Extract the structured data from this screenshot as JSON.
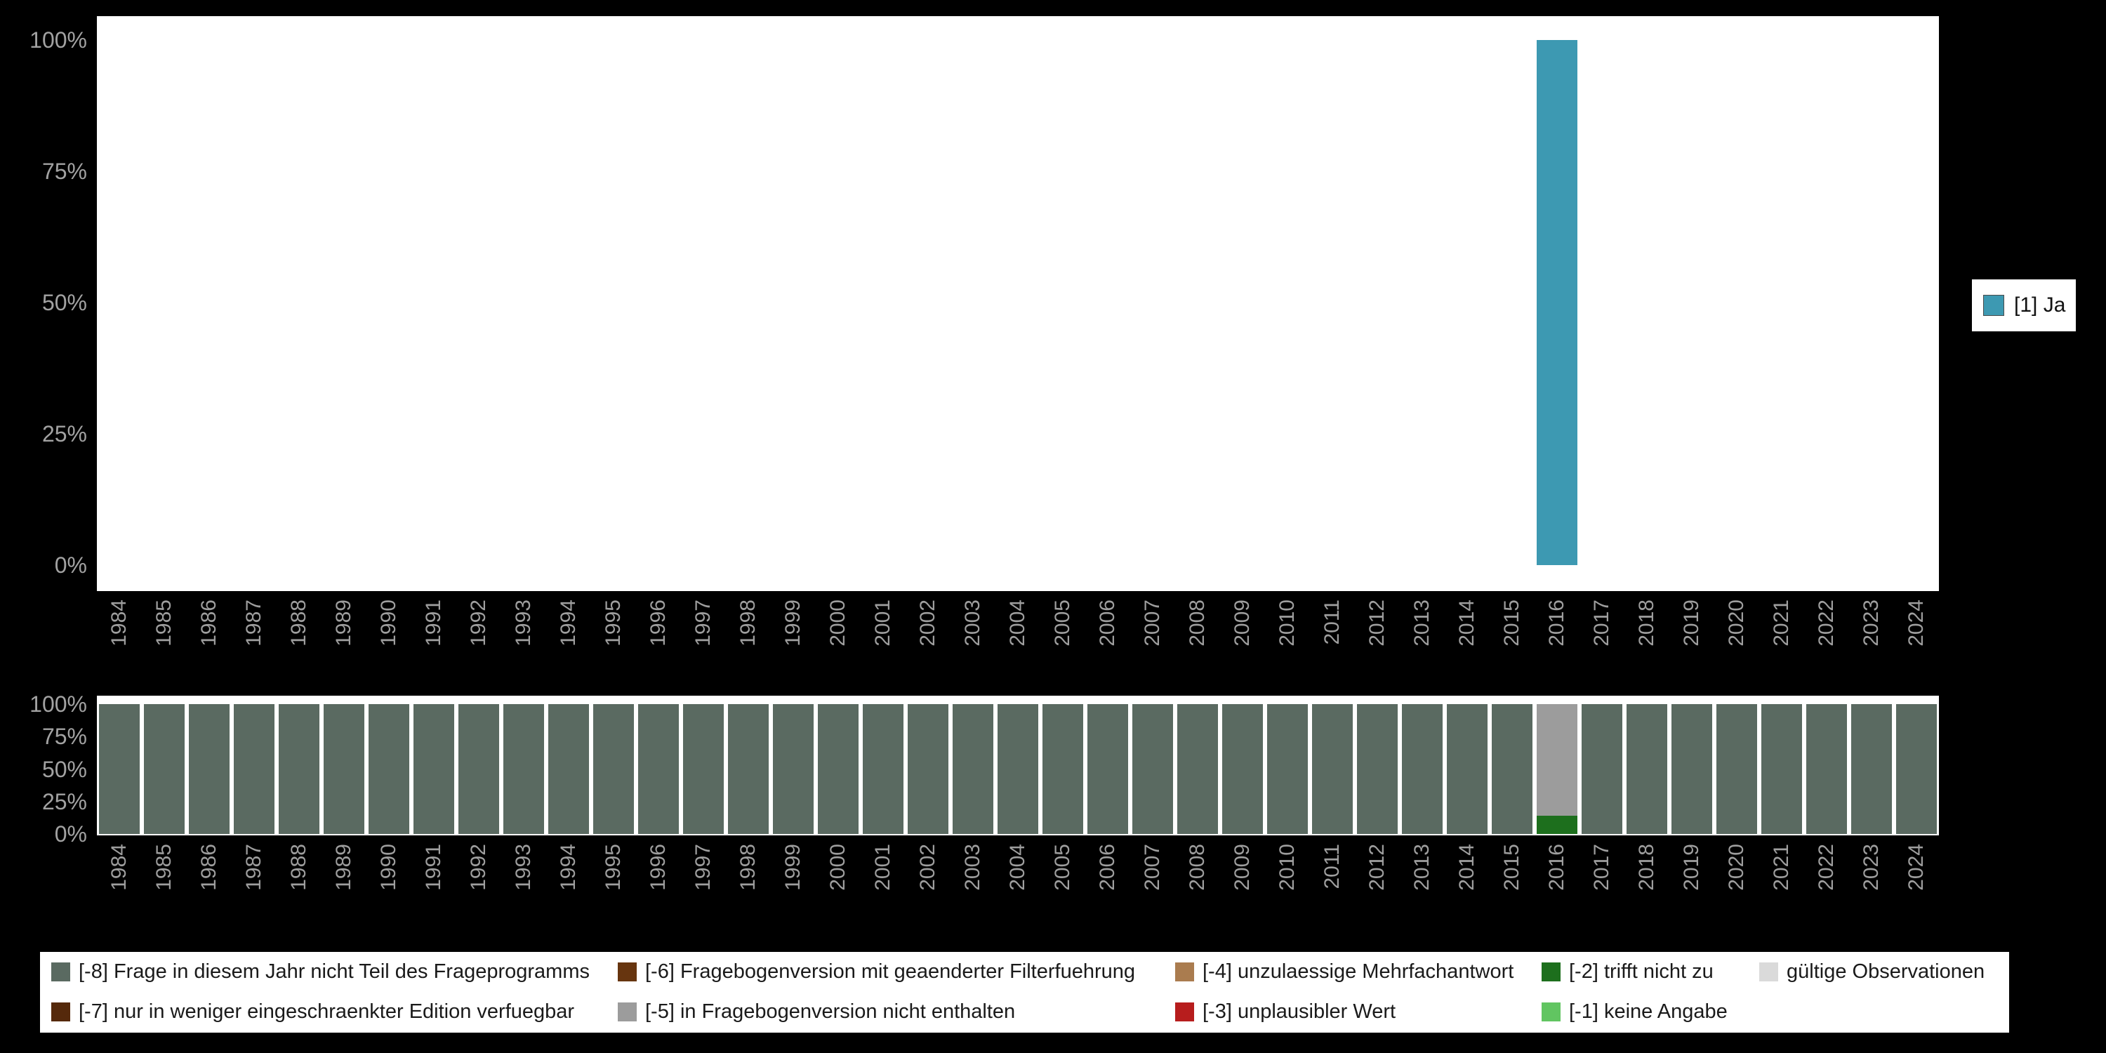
{
  "colors": {
    "background": "#000000",
    "plot_background": "#ffffff",
    "axis_tick_text": "#9e9e9e",
    "legend_panel_background": "#ffffff"
  },
  "chart_data": [
    {
      "id": "frequencies-by-year",
      "type": "bar",
      "title": "",
      "xlabel": "",
      "ylabel": "",
      "x": [
        1984,
        1985,
        1986,
        1987,
        1988,
        1989,
        1990,
        1991,
        1992,
        1993,
        1994,
        1995,
        1996,
        1997,
        1998,
        1999,
        2000,
        2001,
        2002,
        2003,
        2004,
        2005,
        2006,
        2007,
        2008,
        2009,
        2010,
        2011,
        2012,
        2013,
        2014,
        2015,
        2016,
        2017,
        2018,
        2019,
        2020,
        2021,
        2022,
        2023,
        2024
      ],
      "ylim": [
        0,
        100
      ],
      "yticks": [
        "0%",
        "25%",
        "50%",
        "75%",
        "100%"
      ],
      "grid": false,
      "series": [
        {
          "name": "[1] Ja",
          "color": "#3d99b2",
          "values": {
            "2016": 100
          }
        }
      ],
      "legend": {
        "position": "right",
        "entries": [
          {
            "label": "[1] Ja",
            "color": "#3d99b2"
          }
        ]
      }
    },
    {
      "id": "missing-codes-by-year",
      "type": "bar",
      "stacked": true,
      "title": "",
      "xlabel": "",
      "ylabel": "",
      "x": [
        1984,
        1985,
        1986,
        1987,
        1988,
        1989,
        1990,
        1991,
        1992,
        1993,
        1994,
        1995,
        1996,
        1997,
        1998,
        1999,
        2000,
        2001,
        2002,
        2003,
        2004,
        2005,
        2006,
        2007,
        2008,
        2009,
        2010,
        2011,
        2012,
        2013,
        2014,
        2015,
        2016,
        2017,
        2018,
        2019,
        2020,
        2021,
        2022,
        2023,
        2024
      ],
      "ylim": [
        0,
        100
      ],
      "yticks": [
        "0%",
        "25%",
        "50%",
        "75%",
        "100%"
      ],
      "grid": false,
      "default_stack": [
        {
          "code": "-8",
          "value": 100
        }
      ],
      "stacks": {
        "2016": [
          {
            "code": "-2",
            "value": 14
          },
          {
            "code": "-5",
            "value": 86
          }
        ]
      },
      "code_colors": {
        "-8": "#5a6a61",
        "-7": "#55290b",
        "-6": "#67350f",
        "-5": "#9c9c9c",
        "-4": "#aa7c4f",
        "-3": "#b71d1d",
        "-2": "#1d6f1d",
        "-1": "#61c561",
        "valid": "#dadada"
      },
      "legend": {
        "position": "bottom",
        "columns": [
          [
            {
              "code": "-8",
              "label": "[-8] Frage in diesem Jahr nicht Teil des Frageprogramms"
            },
            {
              "code": "-7",
              "label": "[-7] nur in weniger eingeschraenkter Edition verfuegbar"
            }
          ],
          [
            {
              "code": "-6",
              "label": "[-6] Fragebogenversion mit geaenderter Filterfuehrung"
            },
            {
              "code": "-5",
              "label": "[-5] in Fragebogenversion nicht enthalten"
            }
          ],
          [
            {
              "code": "-4",
              "label": "[-4] unzulaessige Mehrfachantwort"
            },
            {
              "code": "-3",
              "label": "[-3] unplausibler Wert"
            }
          ],
          [
            {
              "code": "-2",
              "label": "[-2] trifft nicht zu"
            },
            {
              "code": "-1",
              "label": "[-1] keine Angabe"
            }
          ],
          [
            {
              "code": "valid",
              "label": "gültige Observationen"
            }
          ]
        ]
      }
    }
  ]
}
